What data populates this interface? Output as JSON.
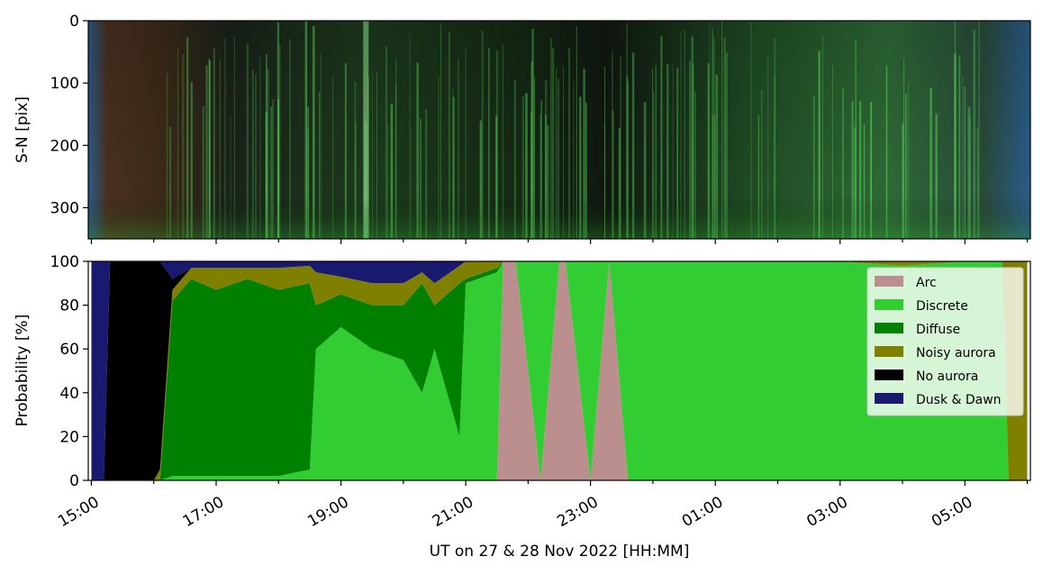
{
  "chart_data": [
    {
      "type": "heatmap",
      "description_kind": "keogram",
      "ylabel": "S-N [pix]",
      "y_ticks": [
        0,
        100,
        200,
        300
      ],
      "ylim": [
        350,
        0
      ],
      "x_range_hours": [
        14.95,
        30.05
      ],
      "x_ticks_hours": [
        15,
        16,
        17,
        18,
        19,
        20,
        21,
        22,
        23,
        24,
        25,
        26,
        27,
        28,
        29,
        30
      ],
      "bright_band_hours": [
        19.4
      ],
      "colors": {
        "background": "#101a10",
        "aurora": "#4fd04f",
        "edges": "#2a5c8a"
      }
    },
    {
      "type": "area",
      "stacked": true,
      "ylabel": "Probability [%]",
      "xlabel": "UT on 27 & 28 Nov 2022 [HH:MM]",
      "ylim": [
        0,
        100
      ],
      "y_ticks": [
        0,
        20,
        40,
        60,
        80,
        100
      ],
      "x_range_hours": [
        14.95,
        30.05
      ],
      "x_ticks_hours": [
        15,
        16,
        17,
        18,
        19,
        20,
        21,
        22,
        23,
        24,
        25,
        26,
        27,
        28,
        29,
        30
      ],
      "x_ticklabels": [
        "15:00",
        "17:00",
        "19:00",
        "21:00",
        "23:00",
        "01:00",
        "03:00",
        "05:00"
      ],
      "x_ticklabel_hours": [
        15,
        17,
        19,
        21,
        23,
        25,
        27,
        29
      ],
      "legend_position": "upper right",
      "legend": [
        "Arc",
        "Discrete",
        "Diffuse",
        "Noisy aurora",
        "No aurora",
        "Dusk & Dawn"
      ],
      "series_order_bottom_to_top": [
        "Arc",
        "Discrete",
        "Diffuse",
        "Noisy aurora",
        "No aurora",
        "Dusk & Dawn"
      ],
      "colors": {
        "Arc": "#bc8f8f",
        "Discrete": "#32cd32",
        "Diffuse": "#008000",
        "Noisy aurora": "#808000",
        "No aurora": "#000000",
        "Dusk & Dawn": "#191970"
      },
      "x": [
        15.0,
        15.2,
        15.3,
        15.6,
        16.0,
        16.1,
        16.3,
        16.6,
        17.0,
        17.5,
        18.0,
        18.5,
        18.6,
        19.0,
        19.5,
        20.0,
        20.3,
        20.5,
        20.9,
        21.0,
        21.5,
        21.6,
        21.8,
        22.2,
        22.5,
        22.6,
        23.0,
        23.3,
        23.6,
        24.0,
        24.5,
        25.0,
        26.0,
        27.0,
        28.0,
        29.0,
        29.6,
        29.7,
        30.0
      ],
      "series": [
        {
          "name": "Arc",
          "values": [
            0,
            0,
            0,
            0,
            0,
            0,
            0,
            0,
            0,
            0,
            0,
            0,
            0,
            0,
            0,
            0,
            0,
            0,
            0,
            0,
            0,
            100,
            100,
            0,
            100,
            100,
            0,
            100,
            0,
            0,
            0,
            0,
            0,
            0,
            0,
            0,
            0,
            0,
            0
          ]
        },
        {
          "name": "Discrete",
          "values": [
            0,
            0,
            0,
            0,
            0,
            0,
            2,
            2,
            2,
            2,
            2,
            5,
            60,
            70,
            60,
            55,
            40,
            60,
            20,
            90,
            95,
            0,
            0,
            100,
            0,
            0,
            100,
            0,
            100,
            100,
            100,
            100,
            100,
            100,
            98,
            100,
            100,
            0,
            0
          ]
        },
        {
          "name": "Diffuse",
          "values": [
            0,
            0,
            0,
            0,
            0,
            0,
            80,
            90,
            85,
            90,
            85,
            85,
            20,
            15,
            20,
            25,
            50,
            20,
            70,
            2,
            2,
            0,
            0,
            0,
            0,
            0,
            0,
            0,
            0,
            0,
            0,
            0,
            0,
            0,
            0,
            0,
            0,
            0,
            0
          ]
        },
        {
          "name": "Noisy aurora",
          "values": [
            0,
            0,
            0,
            0,
            0,
            5,
            5,
            5,
            10,
            5,
            10,
            8,
            15,
            8,
            10,
            10,
            5,
            10,
            8,
            8,
            3,
            0,
            0,
            0,
            0,
            0,
            0,
            0,
            0,
            0,
            0,
            0,
            0,
            0,
            2,
            0,
            0,
            100,
            100
          ]
        },
        {
          "name": "No aurora",
          "values": [
            0,
            0,
            100,
            100,
            100,
            95,
            5,
            0,
            0,
            0,
            0,
            0,
            0,
            0,
            0,
            0,
            0,
            0,
            0,
            0,
            0,
            0,
            0,
            0,
            0,
            0,
            0,
            0,
            0,
            0,
            0,
            0,
            0,
            0,
            0,
            0,
            0,
            0,
            0
          ]
        },
        {
          "name": "Dusk & Dawn",
          "values": [
            100,
            100,
            0,
            0,
            0,
            0,
            8,
            3,
            3,
            3,
            3,
            2,
            5,
            7,
            10,
            10,
            5,
            10,
            2,
            0,
            0,
            0,
            0,
            0,
            0,
            0,
            0,
            0,
            0,
            0,
            0,
            0,
            0,
            0,
            0,
            0,
            0,
            0,
            0
          ]
        }
      ]
    }
  ]
}
